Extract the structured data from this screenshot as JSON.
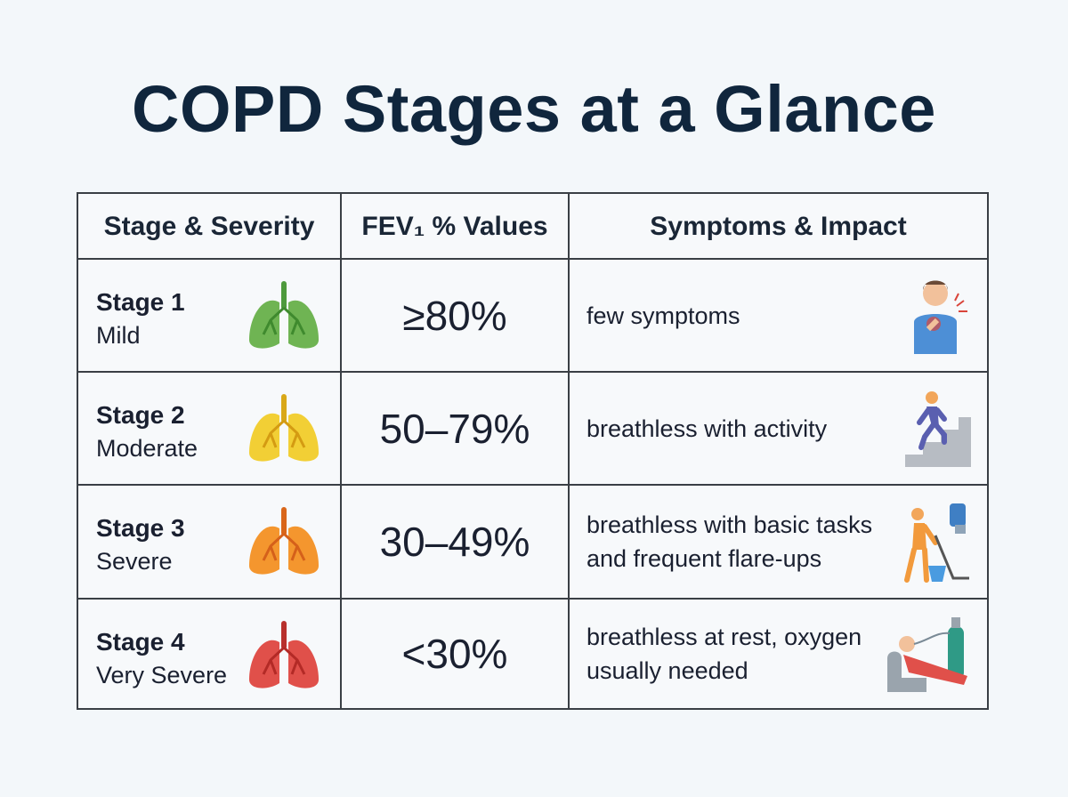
{
  "header": {
    "title": "COPD Stages at a Glance"
  },
  "table": {
    "columns": [
      "Stage & Severity",
      "FEV₁ % Values",
      "Symptoms & Impact"
    ],
    "rows": [
      {
        "stage": "Stage 1",
        "severity": "Mild",
        "fev1": "≥80%",
        "symptoms": "few symptoms"
      },
      {
        "stage": "Stage 2",
        "severity": "Moderate",
        "fev1": "50–79%",
        "symptoms": "breathless with activity"
      },
      {
        "stage": "Stage 3",
        "severity": "Severe",
        "fev1": "30–49%",
        "symptoms": "breathless with basic tasks and frequent flare-ups"
      },
      {
        "stage": "Stage 4",
        "severity": "Very Severe",
        "fev1": "<30%",
        "symptoms": "breathless at rest, oxygen usually needed"
      }
    ]
  }
}
